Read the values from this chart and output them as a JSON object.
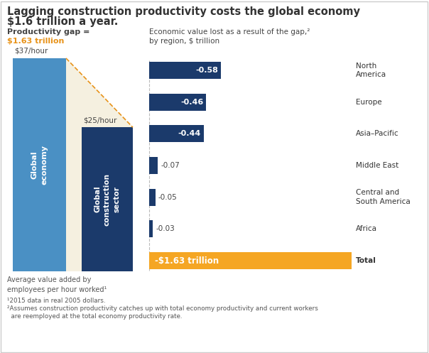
{
  "title_line1": "Lagging construction productivity costs the global economy",
  "title_line2": "$1.6 trillion a year.",
  "left_subtitle": "Productivity gap =",
  "left_subtitle_value": "$1.63 trillion",
  "right_subtitle_line1": "Economic value lost as a result of the gap,²",
  "right_subtitle_line2": "by region, $ trillion",
  "bar1_label": "Global\neconomy",
  "bar2_label": "Global\nconstruction\nsector",
  "bar1_value": 37,
  "bar2_value": 25,
  "bar1_ytick": "$37/hour",
  "bar2_ytick": "$25/hour",
  "bar1_color": "#4A90C4",
  "bar2_color": "#1B3A6B",
  "gap_fill_color": "#F5F0E0",
  "gap_line_color": "#E8931A",
  "footnote1": "¹2015 data in real 2005 dollars.",
  "footnote2": "²Assumes construction productivity catches up with total economy productivity and current workers",
  "footnote3": "  are reemployed at the total economy productivity rate.",
  "regions": [
    "North\nAmerica",
    "Europe",
    "Asia–Pacific",
    "Middle East",
    "Central and\nSouth America",
    "Africa",
    "Total"
  ],
  "region_values": [
    -0.58,
    -0.46,
    -0.44,
    -0.07,
    -0.05,
    -0.03,
    -1.63
  ],
  "region_labels": [
    "-0.58",
    "-0.46",
    "-0.44",
    "-0.07",
    "-0.05",
    "-0.03",
    "-$1.63 trillion"
  ],
  "bar_color_dark": "#1B3A6B",
  "bar_color_orange": "#F5A623",
  "avg_label": "Average value added by\nemployees per hour worked¹",
  "background_color": "#FFFFFF",
  "border_color": "#CCCCCC"
}
